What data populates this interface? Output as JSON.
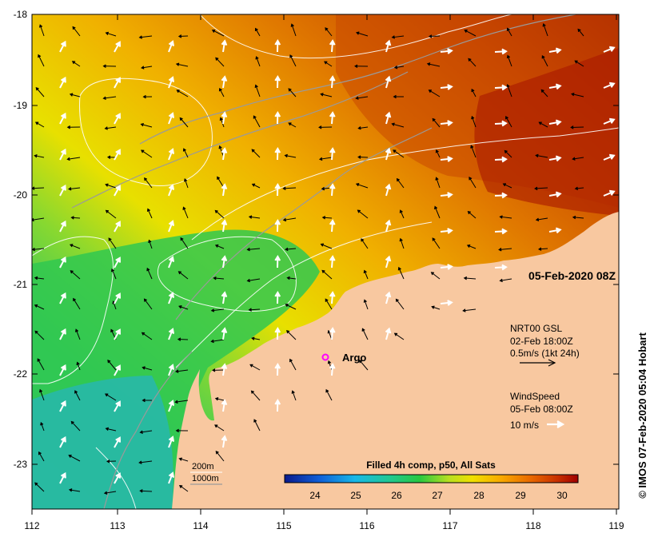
{
  "map": {
    "lat_ticks": [
      "-18",
      "-19",
      "-20",
      "-21",
      "-22",
      "-23"
    ],
    "lon_ticks": [
      "112",
      "113",
      "114",
      "115",
      "116",
      "117",
      "118",
      "119"
    ],
    "timestamp": "05-Feb-2020 08Z",
    "argo_label": "Argo",
    "credit": "© IMOS 07-Feb-2020 05:04 Hobart"
  },
  "current_legend": {
    "title": "NRT00 GSL",
    "date": "02-Feb 18:00Z",
    "scale": "0.5m/s (1kt 24h)",
    "arrow_color": "#000000"
  },
  "wind_legend": {
    "title": "WindSpeed",
    "date": "05-Feb 08:00Z",
    "scale": "10 m/s",
    "arrow_color": "#ffffff"
  },
  "bathymetry_legend": {
    "contour_1": "200m",
    "contour_2": "1000m"
  },
  "colorbar": {
    "title": "Filled 4h comp, p50, All Sats",
    "ticks": [
      "24",
      "25",
      "26",
      "27",
      "28",
      "29",
      "30"
    ],
    "colors": [
      "#0a1a8c",
      "#1060d8",
      "#18b8e8",
      "#20c890",
      "#28c840",
      "#b8e020",
      "#f0e000",
      "#f8a800",
      "#e86800",
      "#c83000",
      "#a00000"
    ]
  },
  "colors": {
    "land": "#f8c8a0",
    "argo_marker": "#ff00ff"
  }
}
